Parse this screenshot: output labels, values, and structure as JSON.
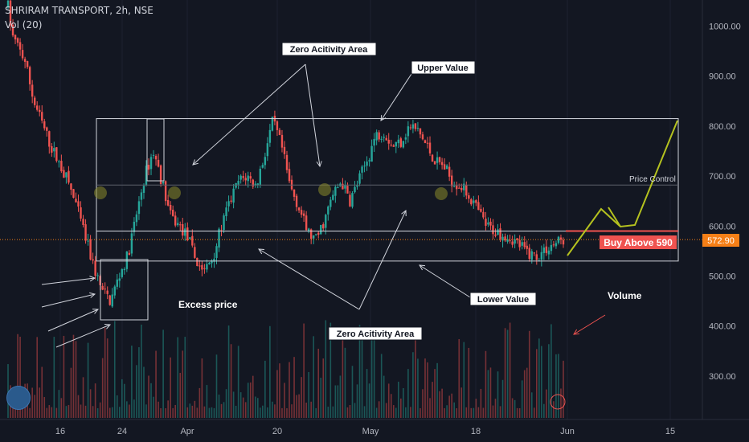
{
  "header": {
    "symbol_line": "SHRIRAM TRANSPORT, 2h, NSE",
    "volume_line": "Vol (20)"
  },
  "annotations": {
    "zero_activity_top": "Zero Acitivity Area",
    "zero_activity_bottom": "Zero Acitivity Area",
    "upper_value": "Upper Value",
    "lower_value": "Lower Value",
    "excess_price": "Excess price",
    "price_control": "Price Control",
    "volume": "Volume",
    "buy_above": "Buy Above 590"
  },
  "colors": {
    "up": "#26a69a",
    "down": "#ef5350",
    "background": "#131722",
    "text": "#d1d4dc",
    "price_line": "#f57f17",
    "forecast": "#b5c21f"
  },
  "chart_data": {
    "type": "candlestick",
    "price_axis": {
      "min": 220,
      "max": 1040,
      "ticks": [
        1000,
        900,
        800,
        700,
        600,
        500,
        400,
        300
      ]
    },
    "price_axis_labels": [
      "1000.00",
      "900.00",
      "800.00",
      "700.00",
      "600.00",
      "500.00",
      "400.00",
      "300.00"
    ],
    "x_ticks": [
      "16",
      "24",
      "Apr",
      "20",
      "May",
      "18",
      "Jun",
      "15"
    ],
    "current_price": 572.9,
    "current_price_label": "572.90",
    "buy_level": 590,
    "price_control_level": 682,
    "upper_value_box": [
      590,
      815
    ],
    "lower_value_box": [
      530,
      590
    ],
    "anchors": [
      [
        0,
        1040
      ],
      [
        0.5,
        980
      ],
      [
        2,
        930
      ],
      [
        3,
        850
      ],
      [
        5,
        760
      ],
      [
        7,
        690
      ],
      [
        8,
        640
      ],
      [
        9,
        580
      ],
      [
        10,
        520
      ],
      [
        11,
        470
      ],
      [
        12,
        450
      ],
      [
        13,
        500
      ],
      [
        14,
        540
      ],
      [
        15,
        620
      ],
      [
        16,
        700
      ],
      [
        17,
        750
      ],
      [
        18,
        690
      ],
      [
        19,
        620
      ],
      [
        20,
        600
      ],
      [
        21,
        580
      ],
      [
        22,
        530
      ],
      [
        23,
        510
      ],
      [
        24,
        540
      ],
      [
        25,
        600
      ],
      [
        26,
        650
      ],
      [
        27,
        690
      ],
      [
        28,
        700
      ],
      [
        29,
        680
      ],
      [
        30,
        740
      ],
      [
        31,
        810
      ],
      [
        32,
        760
      ],
      [
        33,
        680
      ],
      [
        34,
        640
      ],
      [
        35,
        590
      ],
      [
        36,
        570
      ],
      [
        37,
        610
      ],
      [
        38,
        660
      ],
      [
        39,
        690
      ],
      [
        40,
        650
      ],
      [
        41,
        690
      ],
      [
        42,
        730
      ],
      [
        43,
        780
      ],
      [
        44,
        790
      ],
      [
        45,
        760
      ],
      [
        46,
        770
      ],
      [
        47,
        800
      ],
      [
        48,
        790
      ],
      [
        49,
        760
      ],
      [
        50,
        730
      ],
      [
        51,
        720
      ],
      [
        52,
        690
      ],
      [
        53,
        680
      ],
      [
        54,
        660
      ],
      [
        55,
        630
      ],
      [
        56,
        600
      ],
      [
        57,
        590
      ],
      [
        58,
        585
      ],
      [
        59,
        575
      ],
      [
        60,
        560
      ],
      [
        61,
        545
      ],
      [
        62,
        540
      ],
      [
        63,
        555
      ],
      [
        64,
        565
      ],
      [
        65,
        573
      ]
    ]
  }
}
